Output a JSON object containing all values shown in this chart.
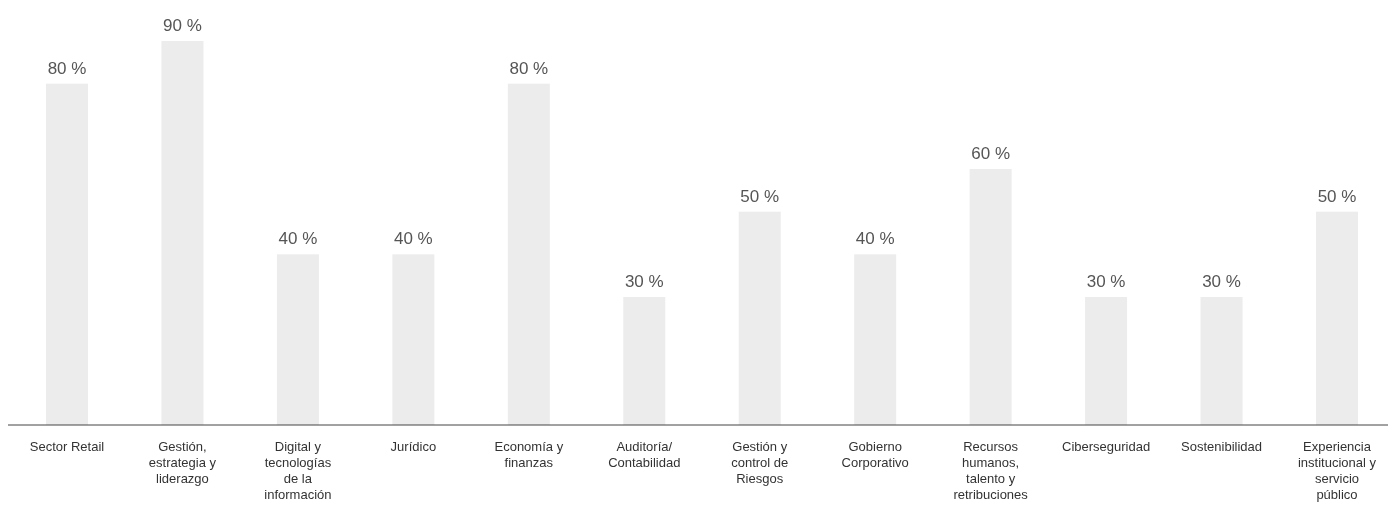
{
  "chart_data": {
    "type": "bar",
    "categories": [
      "Sector Retail",
      "Gestión, estrategia y liderazgo",
      "Digital y tecnologías de la información",
      "Jurídico",
      "Economía y finanzas",
      "Auditoría/Contabilidad",
      "Gestión y control de Riesgos",
      "Gobierno Corporativo",
      "Recursos humanos, talento y retribuciones",
      "Ciberseguridad",
      "Sostenibilidad",
      "Experiencia institucional y servicio público"
    ],
    "values": [
      80,
      90,
      40,
      40,
      80,
      30,
      50,
      40,
      60,
      30,
      30,
      50
    ],
    "value_labels": [
      "80 %",
      "90 %",
      "40 %",
      "40 %",
      "80 %",
      "30 %",
      "50 %",
      "40 %",
      "60 %",
      "30 %",
      "30 %",
      "50 %"
    ],
    "color": "#ececec"
  }
}
